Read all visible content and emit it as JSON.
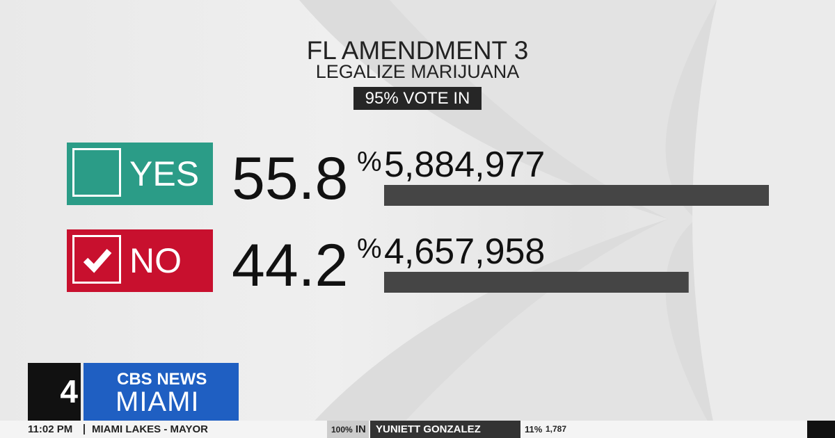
{
  "header": {
    "title": "FL  AMENDMENT 3",
    "subtitle": "LEGALIZE MARIJUANA",
    "badge": "95% VOTE IN"
  },
  "results": {
    "choices": [
      "YES",
      "NO"
    ],
    "percents": [
      55.8,
      44.2
    ],
    "percent_sign": "%",
    "values": [
      5884977,
      4657958
    ],
    "value_labels": [
      "5,884,977",
      "4,657,958"
    ],
    "colors": [
      "#2b9c87",
      "#c8102e"
    ],
    "bar_color": "#454545",
    "winner": 1
  },
  "logo": {
    "channel": "4",
    "network": "CBS NEWS",
    "station": "MIAMI"
  },
  "ticker": {
    "time": "11:02 PM",
    "race": "MIAMI LAKES - MAYOR",
    "reporting": "100%",
    "reporting_unit": "IN",
    "candidate": "YUNIETT GONZALEZ",
    "share": "11%",
    "votes": "1,787"
  }
}
